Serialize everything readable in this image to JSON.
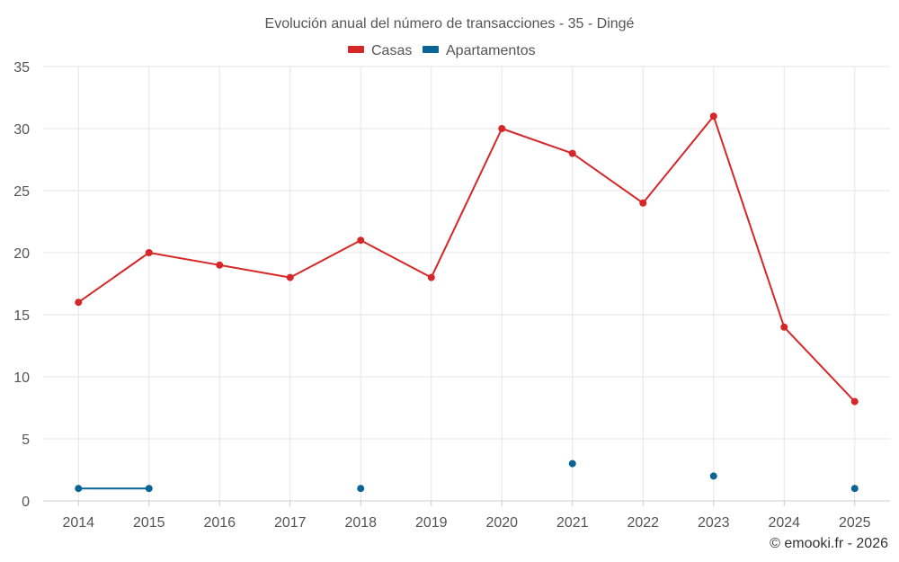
{
  "chart_data": {
    "type": "line",
    "title": "Evolución anual del número de transacciones - 35 - Dingé",
    "categories": [
      "2014",
      "2015",
      "2016",
      "2017",
      "2018",
      "2019",
      "2020",
      "2021",
      "2022",
      "2023",
      "2024",
      "2025"
    ],
    "series": [
      {
        "name": "Casas",
        "color": "#d62728",
        "values": [
          16,
          20,
          19,
          18,
          21,
          18,
          30,
          28,
          24,
          31,
          14,
          8
        ]
      },
      {
        "name": "Apartamentos",
        "color": "#0a6496",
        "values": [
          1,
          1,
          null,
          null,
          1,
          null,
          null,
          3,
          null,
          2,
          null,
          1
        ]
      }
    ],
    "ylim": [
      0,
      35
    ],
    "yticks": [
      0,
      5,
      10,
      15,
      20,
      25,
      30,
      35
    ],
    "grid": true,
    "legend": "top-center",
    "credit": "© emooki.fr - 2026"
  }
}
